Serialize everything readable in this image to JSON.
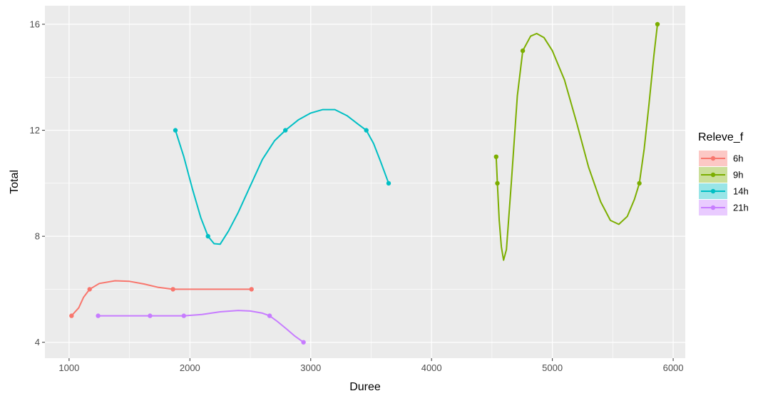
{
  "chart_data": {
    "type": "line",
    "xlabel": "Duree",
    "ylabel": "Total",
    "xlim": [
      800,
      6100
    ],
    "ylim": [
      3.4,
      16.7
    ],
    "x_ticks": [
      1000,
      2000,
      3000,
      4000,
      5000,
      6000
    ],
    "x_tick_labels": [
      "1000",
      "2000",
      "3000",
      "4000",
      "5000",
      "6000"
    ],
    "y_ticks": [
      4,
      8,
      12,
      16
    ],
    "y_tick_labels": [
      "4",
      "8",
      "12",
      "16"
    ],
    "grid": true,
    "smoothed": true,
    "legend": {
      "title": "Releve_f",
      "position": "right"
    },
    "series": [
      {
        "name": "6h",
        "color": "#F8766D",
        "points": [
          [
            1020,
            5
          ],
          [
            1170,
            6
          ],
          [
            1860,
            6
          ],
          [
            2510,
            6
          ]
        ],
        "curve": [
          [
            1020,
            5
          ],
          [
            1080,
            5.3
          ],
          [
            1120,
            5.7
          ],
          [
            1170,
            6
          ],
          [
            1250,
            6.22
          ],
          [
            1380,
            6.32
          ],
          [
            1500,
            6.3
          ],
          [
            1620,
            6.2
          ],
          [
            1740,
            6.07
          ],
          [
            1860,
            6
          ],
          [
            2000,
            6
          ],
          [
            2200,
            6
          ],
          [
            2400,
            6
          ],
          [
            2510,
            6
          ]
        ]
      },
      {
        "name": "9h",
        "color": "#7CAE00",
        "points": [
          [
            4535,
            11
          ],
          [
            4545,
            10
          ],
          [
            4755,
            15
          ],
          [
            5720,
            10
          ],
          [
            5870,
            16
          ]
        ],
        "curve": [
          [
            4535,
            11
          ],
          [
            4540,
            10.5
          ],
          [
            4545,
            10
          ],
          [
            4560,
            8.6
          ],
          [
            4578,
            7.6
          ],
          [
            4596,
            7.1
          ],
          [
            4620,
            7.5
          ],
          [
            4660,
            10
          ],
          [
            4710,
            13.3
          ],
          [
            4755,
            15
          ],
          [
            4820,
            15.55
          ],
          [
            4870,
            15.65
          ],
          [
            4930,
            15.5
          ],
          [
            5000,
            15
          ],
          [
            5100,
            13.9
          ],
          [
            5200,
            12.3
          ],
          [
            5300,
            10.6
          ],
          [
            5400,
            9.3
          ],
          [
            5480,
            8.6
          ],
          [
            5550,
            8.45
          ],
          [
            5620,
            8.75
          ],
          [
            5680,
            9.4
          ],
          [
            5720,
            10
          ],
          [
            5760,
            11.3
          ],
          [
            5800,
            13
          ],
          [
            5840,
            14.8
          ],
          [
            5870,
            16
          ]
        ]
      },
      {
        "name": "14h",
        "color": "#00BFC4",
        "points": [
          [
            1880,
            12
          ],
          [
            2150,
            8
          ],
          [
            2790,
            12
          ],
          [
            3460,
            12
          ],
          [
            3645,
            10
          ]
        ],
        "curve": [
          [
            1880,
            12
          ],
          [
            1950,
            11
          ],
          [
            2020,
            9.8
          ],
          [
            2090,
            8.7
          ],
          [
            2150,
            8
          ],
          [
            2200,
            7.72
          ],
          [
            2250,
            7.7
          ],
          [
            2320,
            8.2
          ],
          [
            2400,
            8.9
          ],
          [
            2500,
            9.9
          ],
          [
            2600,
            10.9
          ],
          [
            2700,
            11.6
          ],
          [
            2790,
            12
          ],
          [
            2900,
            12.4
          ],
          [
            3000,
            12.65
          ],
          [
            3100,
            12.78
          ],
          [
            3200,
            12.78
          ],
          [
            3300,
            12.55
          ],
          [
            3400,
            12.2
          ],
          [
            3460,
            12
          ],
          [
            3520,
            11.5
          ],
          [
            3580,
            10.8
          ],
          [
            3645,
            10
          ]
        ]
      },
      {
        "name": "21h",
        "color": "#C77CFF",
        "points": [
          [
            1240,
            5
          ],
          [
            1670,
            5
          ],
          [
            1950,
            5
          ],
          [
            2660,
            5
          ],
          [
            2940,
            4
          ]
        ],
        "curve": [
          [
            1240,
            5
          ],
          [
            1450,
            5
          ],
          [
            1670,
            5
          ],
          [
            1800,
            5
          ],
          [
            1950,
            5
          ],
          [
            2100,
            5.05
          ],
          [
            2250,
            5.15
          ],
          [
            2400,
            5.2
          ],
          [
            2500,
            5.18
          ],
          [
            2600,
            5.1
          ],
          [
            2660,
            5
          ],
          [
            2720,
            4.8
          ],
          [
            2800,
            4.5
          ],
          [
            2870,
            4.23
          ],
          [
            2940,
            4
          ]
        ]
      }
    ]
  }
}
